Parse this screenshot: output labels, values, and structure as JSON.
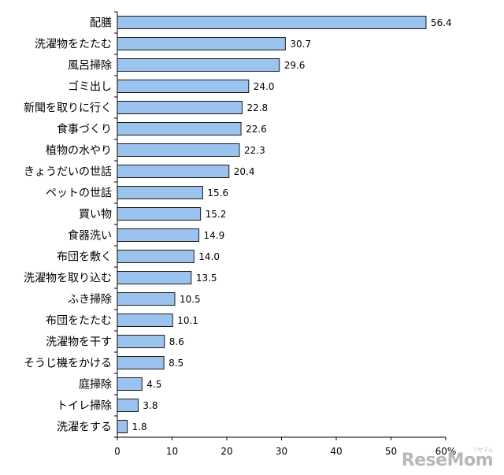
{
  "chart_data": {
    "type": "bar",
    "orientation": "horizontal",
    "categories": [
      "配膳",
      "洗濯物をたたむ",
      "風呂掃除",
      "ゴミ出し",
      "新聞を取りに行く",
      "食事づくり",
      "植物の水やり",
      "きょうだいの世話",
      "ペットの世話",
      "買い物",
      "食器洗い",
      "布団を敷く",
      "洗濯物を取り込む",
      "ふき掃除",
      "布団をたたむ",
      "洗濯物を干す",
      "そうじ機をかける",
      "庭掃除",
      "トイレ掃除",
      "洗濯をする"
    ],
    "values": [
      56.4,
      30.7,
      29.6,
      24.0,
      22.8,
      22.6,
      22.3,
      20.4,
      15.6,
      15.2,
      14.9,
      14.0,
      13.5,
      10.5,
      10.1,
      8.6,
      8.5,
      4.5,
      3.8,
      1.8
    ],
    "value_labels": [
      "56.4",
      "30.7",
      "29.6",
      "24.0",
      "22.8",
      "22.6",
      "22.3",
      "20.4",
      "15.6",
      "15.2",
      "14.9",
      "14.0",
      "13.5",
      "10.5",
      "10.1",
      "8.6",
      "8.5",
      "4.5",
      "3.8",
      "1.8"
    ],
    "xticks": [
      "0",
      "10",
      "20",
      "30",
      "40",
      "50",
      "60"
    ],
    "xunit": "%",
    "xlim": [
      0,
      60
    ],
    "title": "",
    "xlabel": "",
    "ylabel": "",
    "grid": false,
    "bar_fill": "#9cc3ee",
    "bar_stroke": "#1a1a1a"
  },
  "watermark": {
    "text": "ReseMom",
    "small_text": "リセマム"
  }
}
